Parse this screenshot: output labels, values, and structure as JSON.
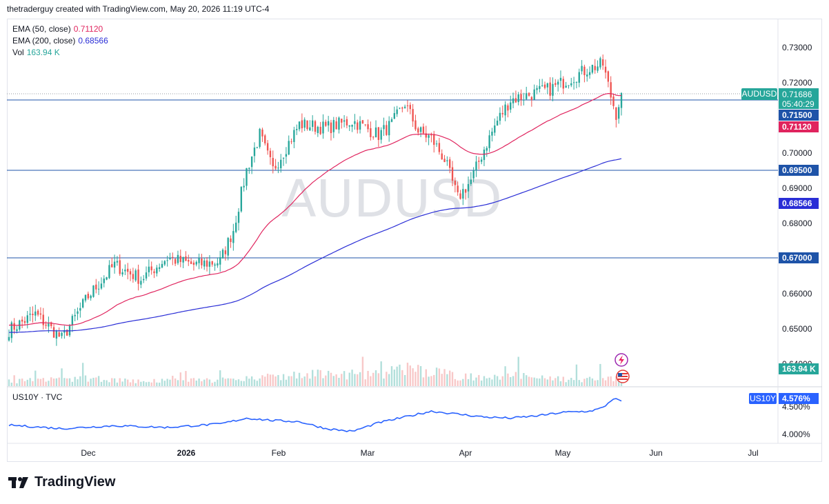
{
  "header": {
    "text": "thetraderguy created with TradingView.com, May 20, 2026 11:19 UTC-4"
  },
  "watermark": "AUDUSD",
  "brand": "TradingView",
  "colors": {
    "up": "#26a69a",
    "down": "#ef5350",
    "ema50": "#e0245e",
    "ema200": "#2a2ed6",
    "hline": "#1e53a8",
    "vol_up": "#b2dfdb",
    "vol_down": "#f8c8c8",
    "us10y": "#2962ff"
  },
  "legend": {
    "ema50": {
      "label": "EMA (50, close)",
      "value": "0.71120",
      "color": "#e0245e"
    },
    "ema200": {
      "label": "EMA (200, close)",
      "value": "0.68566",
      "color": "#2a2ed6"
    },
    "vol": {
      "label": "Vol",
      "value": "163.94 K",
      "color": "#26a69a"
    }
  },
  "price_axis": {
    "ticks": [
      "0.73000",
      "0.72000",
      "0.70000",
      "0.69000",
      "0.68000",
      "0.66000",
      "0.65000",
      "0.64000"
    ]
  },
  "price_labels": {
    "symbol": "AUDUSD",
    "last": "0.71686",
    "countdown": "05:40:29",
    "hline_top": "0.71500",
    "ema50": "0.71120",
    "hline_mid": "0.69500",
    "ema200": "0.68566",
    "hline_low": "0.67000",
    "vol": "163.94 K"
  },
  "sub_pane": {
    "title": "US10Y · TVC",
    "symbol": "US10Y",
    "last": "4.576%",
    "ticks": [
      "4.000%"
    ],
    "hidden_tick": "4.500%"
  },
  "time_axis": {
    "labels": [
      "Dec",
      "2026",
      "Feb",
      "Mar",
      "Apr",
      "May",
      "Jun",
      "Jul"
    ]
  },
  "chart_data": {
    "type": "candlestick",
    "symbol": "AUDUSD",
    "ylim": [
      0.635,
      0.735
    ],
    "horizontal_lines": [
      0.715,
      0.695,
      0.67
    ],
    "series": [
      {
        "name": "EMA (50, close)",
        "last": 0.7112
      },
      {
        "name": "EMA (200, close)",
        "last": 0.68566
      },
      {
        "name": "Vol",
        "last": "163.94 K"
      },
      {
        "name": "US10Y",
        "last": 4.576
      }
    ],
    "approx_path": {
      "close_anchors": [
        [
          0,
          0.6495
        ],
        [
          10,
          0.654
        ],
        [
          20,
          0.647
        ],
        [
          30,
          0.659
        ],
        [
          40,
          0.668
        ],
        [
          50,
          0.664
        ],
        [
          60,
          0.67
        ],
        [
          70,
          0.668
        ],
        [
          80,
          0.669
        ],
        [
          85,
          0.678
        ],
        [
          90,
          0.695
        ],
        [
          95,
          0.705
        ],
        [
          100,
          0.695
        ],
        [
          110,
          0.708
        ],
        [
          120,
          0.707
        ],
        [
          130,
          0.709
        ],
        [
          140,
          0.705
        ],
        [
          145,
          0.708
        ],
        [
          150,
          0.714
        ],
        [
          155,
          0.706
        ],
        [
          160,
          0.704
        ],
        [
          165,
          0.698
        ],
        [
          170,
          0.687
        ],
        [
          175,
          0.692
        ],
        [
          180,
          0.701
        ],
        [
          185,
          0.709
        ],
        [
          190,
          0.715
        ],
        [
          200,
          0.717
        ],
        [
          205,
          0.718
        ],
        [
          210,
          0.72
        ],
        [
          220,
          0.724
        ],
        [
          225,
          0.725
        ],
        [
          228,
          0.716
        ],
        [
          230,
          0.711
        ],
        [
          232,
          0.7169
        ]
      ],
      "volume_anchors": [
        [
          0,
          0.05
        ],
        [
          30,
          0.08
        ],
        [
          50,
          0.05
        ],
        [
          60,
          0.06
        ],
        [
          80,
          0.06
        ],
        [
          90,
          0.08
        ],
        [
          100,
          0.1
        ],
        [
          110,
          0.12
        ],
        [
          120,
          0.12
        ],
        [
          140,
          0.12
        ],
        [
          150,
          0.18
        ],
        [
          160,
          0.15
        ],
        [
          170,
          0.1
        ],
        [
          180,
          0.1
        ],
        [
          190,
          0.12
        ],
        [
          200,
          0.08
        ],
        [
          210,
          0.07
        ],
        [
          220,
          0.07
        ],
        [
          232,
          0.08
        ]
      ],
      "us10y_anchors": [
        [
          0,
          4.16
        ],
        [
          20,
          4.1
        ],
        [
          40,
          4.15
        ],
        [
          60,
          4.12
        ],
        [
          80,
          4.18
        ],
        [
          90,
          4.28
        ],
        [
          100,
          4.24
        ],
        [
          110,
          4.22
        ],
        [
          120,
          4.1
        ],
        [
          130,
          4.05
        ],
        [
          140,
          4.2
        ],
        [
          150,
          4.3
        ],
        [
          160,
          4.4
        ],
        [
          170,
          4.35
        ],
        [
          180,
          4.3
        ],
        [
          190,
          4.28
        ],
        [
          200,
          4.32
        ],
        [
          210,
          4.38
        ],
        [
          220,
          4.4
        ],
        [
          225,
          4.46
        ],
        [
          229,
          4.62
        ],
        [
          232,
          4.576
        ]
      ]
    }
  }
}
